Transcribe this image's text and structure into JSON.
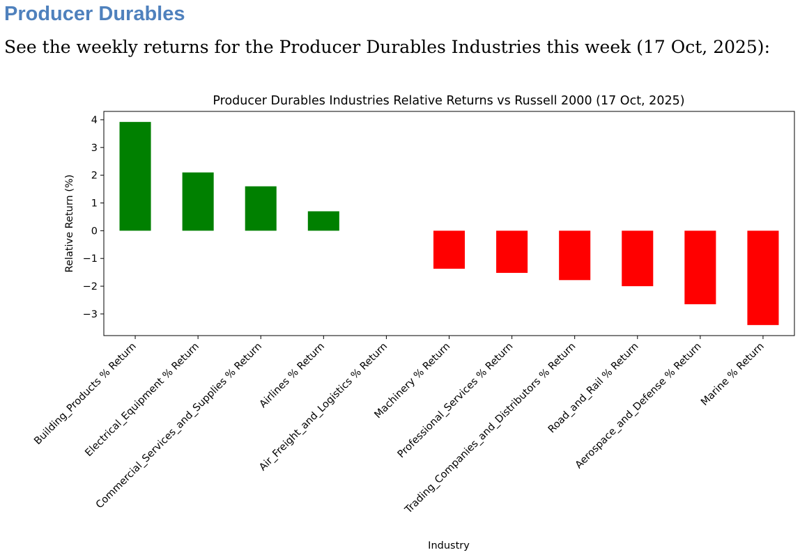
{
  "page": {
    "heading": "Producer Durables",
    "intro": "See the weekly returns for the Producer Durables Industries this week (17 Oct, 2025):"
  },
  "chart_data": {
    "type": "bar",
    "title": "Producer Durables Industries Relative Returns vs Russell 2000 (17 Oct, 2025)",
    "xlabel": "Industry",
    "ylabel": "Relative Return (%)",
    "ylim": [
      -3.78,
      4.3
    ],
    "yticks": [
      4,
      3,
      2,
      1,
      0,
      -1,
      -2,
      -3
    ],
    "ytick_labels": [
      "4",
      "3",
      "2",
      "1",
      "0",
      "−1",
      "−2",
      "−3"
    ],
    "categories": [
      "Building_Products % Return",
      "Electrical_Equipment % Return",
      "Commercial_Services_and_Supplies % Return",
      "Airlines % Return",
      "Air_Freight_and_Logistics % Return",
      "Machinery % Return",
      "Professional_Services % Return",
      "Trading_Companies_and_Distributors % Return",
      "Road_and_Rail % Return",
      "Aerospace_and_Defense % Return",
      "Marine % Return"
    ],
    "values": [
      3.92,
      2.1,
      1.6,
      0.7,
      0.0,
      -1.37,
      -1.52,
      -1.78,
      -2.0,
      -2.65,
      -3.4
    ],
    "colors": {
      "positive": "#008000",
      "negative": "#ff0000",
      "axis": "#000000"
    }
  }
}
